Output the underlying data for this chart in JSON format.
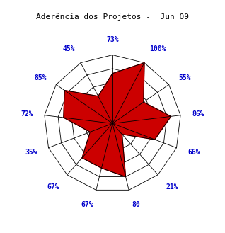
{
  "title": "Aderência dos Projetos -  Jun 09",
  "labels": [
    "73%",
    "100%",
    "55%",
    "86%",
    "66%",
    "21%",
    "80",
    "67%",
    "67%",
    "35%",
    "72%",
    "85%",
    "45%"
  ],
  "values": [
    0.73,
    1.0,
    0.55,
    0.86,
    0.66,
    0.21,
    0.8,
    0.67,
    0.67,
    0.35,
    0.72,
    0.85,
    0.45
  ],
  "num_vars": 13,
  "grid_levels": 5,
  "fill_color": "#CC0000",
  "fill_alpha": 1.0,
  "line_color": "#000000",
  "grid_color": "#000000",
  "label_color": "#0000CC",
  "title_color": "#000000",
  "background_color": "#FFFFFF",
  "title_fontsize": 8,
  "label_fontsize": 7
}
